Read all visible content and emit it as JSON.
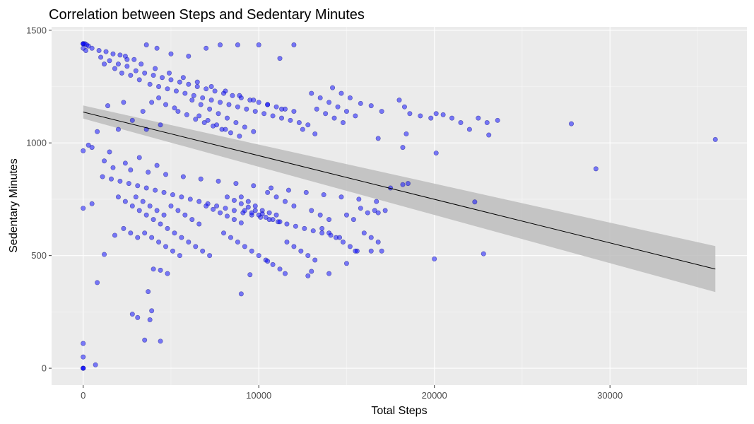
{
  "chart_data": {
    "type": "scatter",
    "title": "Correlation between Steps and Sedentary Minutes",
    "xlabel": "Total Steps",
    "ylabel": "Sedentary Minutes",
    "xlim": [
      -1800,
      37800
    ],
    "ylim": [
      -75,
      1515
    ],
    "x_ticks": [
      0,
      10000,
      20000,
      30000
    ],
    "x_tick_labels": [
      "0",
      "10000",
      "20000",
      "30000"
    ],
    "y_ticks": [
      0,
      500,
      1000,
      1500
    ],
    "y_tick_labels": [
      "0",
      "500",
      "1000",
      "1500"
    ],
    "grid": true,
    "legend": "none",
    "point_color": "#0000ff",
    "point_alpha": 0.5,
    "trend": {
      "method": "linear",
      "x": [
        0,
        36000
      ],
      "y": [
        1137,
        440
      ],
      "ci_lower_start": 1108,
      "ci_upper_start": 1166,
      "ci_lower_end": 338,
      "ci_upper_end": 542,
      "line_color": "#000000",
      "band_color": "#bdbdbd"
    },
    "points": [
      [
        0,
        1440
      ],
      [
        0,
        1440
      ],
      [
        0,
        1440
      ],
      [
        100,
        1440
      ],
      [
        200,
        1435
      ],
      [
        300,
        1430
      ],
      [
        0,
        1420
      ],
      [
        150,
        1410
      ],
      [
        500,
        1420
      ],
      [
        900,
        1410
      ],
      [
        1300,
        1405
      ],
      [
        1700,
        1395
      ],
      [
        2100,
        1390
      ],
      [
        2400,
        1385
      ],
      [
        2900,
        1370
      ],
      [
        3600,
        1435
      ],
      [
        4200,
        1420
      ],
      [
        5000,
        1395
      ],
      [
        6000,
        1385
      ],
      [
        7000,
        1420
      ],
      [
        7800,
        1435
      ],
      [
        8800,
        1435
      ],
      [
        10000,
        1435
      ],
      [
        12000,
        1435
      ],
      [
        11200,
        1375
      ],
      [
        1000,
        1380
      ],
      [
        1500,
        1365
      ],
      [
        2000,
        1350
      ],
      [
        2500,
        1340
      ],
      [
        3000,
        1320
      ],
      [
        3500,
        1310
      ],
      [
        4000,
        1300
      ],
      [
        4500,
        1290
      ],
      [
        5000,
        1280
      ],
      [
        5500,
        1270
      ],
      [
        6000,
        1260
      ],
      [
        6500,
        1250
      ],
      [
        7000,
        1240
      ],
      [
        7500,
        1230
      ],
      [
        8000,
        1220
      ],
      [
        8500,
        1210
      ],
      [
        9000,
        1200
      ],
      [
        9500,
        1190
      ],
      [
        10000,
        1180
      ],
      [
        10500,
        1170
      ],
      [
        11000,
        1160
      ],
      [
        11500,
        1150
      ],
      [
        12000,
        1140
      ],
      [
        1200,
        1350
      ],
      [
        1800,
        1330
      ],
      [
        2200,
        1310
      ],
      [
        2700,
        1300
      ],
      [
        3200,
        1280
      ],
      [
        3800,
        1260
      ],
      [
        4300,
        1250
      ],
      [
        4800,
        1240
      ],
      [
        5300,
        1230
      ],
      [
        5800,
        1220
      ],
      [
        6300,
        1210
      ],
      [
        6800,
        1200
      ],
      [
        7300,
        1190
      ],
      [
        7800,
        1180
      ],
      [
        8300,
        1170
      ],
      [
        8800,
        1160
      ],
      [
        9300,
        1150
      ],
      [
        9800,
        1140
      ],
      [
        10300,
        1130
      ],
      [
        10800,
        1120
      ],
      [
        11300,
        1110
      ],
      [
        11800,
        1100
      ],
      [
        12300,
        1090
      ],
      [
        12800,
        1080
      ],
      [
        2500,
        1370
      ],
      [
        3300,
        1350
      ],
      [
        4100,
        1330
      ],
      [
        4900,
        1310
      ],
      [
        5700,
        1290
      ],
      [
        6500,
        1270
      ],
      [
        7300,
        1250
      ],
      [
        8100,
        1230
      ],
      [
        8900,
        1210
      ],
      [
        9700,
        1190
      ],
      [
        10500,
        1170
      ],
      [
        11300,
        1150
      ],
      [
        6200,
        1190
      ],
      [
        6700,
        1170
      ],
      [
        7200,
        1150
      ],
      [
        7700,
        1130
      ],
      [
        8200,
        1110
      ],
      [
        8700,
        1090
      ],
      [
        9200,
        1070
      ],
      [
        9700,
        1050
      ],
      [
        6600,
        1120
      ],
      [
        7100,
        1100
      ],
      [
        7600,
        1080
      ],
      [
        8100,
        1060
      ],
      [
        5400,
        1140
      ],
      [
        5900,
        1125
      ],
      [
        6400,
        1105
      ],
      [
        6900,
        1090
      ],
      [
        7400,
        1075
      ],
      [
        7900,
        1060
      ],
      [
        8400,
        1045
      ],
      [
        8900,
        1030
      ],
      [
        4700,
        1170
      ],
      [
        5200,
        1155
      ],
      [
        4300,
        1200
      ],
      [
        3900,
        1180
      ],
      [
        13000,
        1220
      ],
      [
        13500,
        1200
      ],
      [
        14000,
        1180
      ],
      [
        14500,
        1160
      ],
      [
        15000,
        1140
      ],
      [
        15500,
        1120
      ],
      [
        13300,
        1150
      ],
      [
        13800,
        1130
      ],
      [
        14300,
        1110
      ],
      [
        14800,
        1090
      ],
      [
        12500,
        1060
      ],
      [
        13200,
        1040
      ],
      [
        14200,
        1245
      ],
      [
        14700,
        1220
      ],
      [
        15200,
        1200
      ],
      [
        15800,
        1175
      ],
      [
        16400,
        1165
      ],
      [
        17000,
        1140
      ],
      [
        18000,
        1190
      ],
      [
        18300,
        1160
      ],
      [
        18600,
        1130
      ],
      [
        19200,
        1120
      ],
      [
        19800,
        1110
      ],
      [
        20500,
        1125
      ],
      [
        20100,
        1130
      ],
      [
        21000,
        1110
      ],
      [
        21500,
        1090
      ],
      [
        22500,
        1110
      ],
      [
        23000,
        1090
      ],
      [
        23600,
        1100
      ],
      [
        22000,
        1060
      ],
      [
        23100,
        1035
      ],
      [
        18200,
        980
      ],
      [
        18400,
        1040
      ],
      [
        20100,
        955
      ],
      [
        16800,
        1020
      ],
      [
        27800,
        1085
      ],
      [
        29200,
        885
      ],
      [
        36000,
        1015
      ],
      [
        22300,
        738
      ],
      [
        22800,
        508
      ],
      [
        20000,
        485
      ],
      [
        18200,
        815
      ],
      [
        1400,
        1165
      ],
      [
        2300,
        1180
      ],
      [
        3400,
        1140
      ],
      [
        2800,
        1100
      ],
      [
        2000,
        1060
      ],
      [
        3600,
        1060
      ],
      [
        4400,
        1080
      ],
      [
        800,
        1050
      ],
      [
        500,
        980
      ],
      [
        300,
        990
      ],
      [
        0,
        965
      ],
      [
        1200,
        920
      ],
      [
        1500,
        960
      ],
      [
        2400,
        910
      ],
      [
        3200,
        935
      ],
      [
        4200,
        900
      ],
      [
        1700,
        890
      ],
      [
        2700,
        880
      ],
      [
        3700,
        870
      ],
      [
        4700,
        860
      ],
      [
        5700,
        850
      ],
      [
        6700,
        840
      ],
      [
        7700,
        830
      ],
      [
        8700,
        820
      ],
      [
        9700,
        810
      ],
      [
        10700,
        800
      ],
      [
        11700,
        790
      ],
      [
        12700,
        780
      ],
      [
        13700,
        770
      ],
      [
        14700,
        760
      ],
      [
        15700,
        750
      ],
      [
        16700,
        740
      ],
      [
        1100,
        850
      ],
      [
        1600,
        840
      ],
      [
        2100,
        830
      ],
      [
        2600,
        820
      ],
      [
        3100,
        810
      ],
      [
        3600,
        800
      ],
      [
        4100,
        790
      ],
      [
        4600,
        780
      ],
      [
        5100,
        770
      ],
      [
        5600,
        760
      ],
      [
        6100,
        750
      ],
      [
        6600,
        740
      ],
      [
        7100,
        730
      ],
      [
        7600,
        720
      ],
      [
        8100,
        710
      ],
      [
        8600,
        700
      ],
      [
        9100,
        690
      ],
      [
        9600,
        680
      ],
      [
        10100,
        670
      ],
      [
        10600,
        660
      ],
      [
        11100,
        650
      ],
      [
        11600,
        640
      ],
      [
        12100,
        630
      ],
      [
        12600,
        620
      ],
      [
        13100,
        610
      ],
      [
        13600,
        600
      ],
      [
        14100,
        590
      ],
      [
        14600,
        580
      ],
      [
        9000,
        760
      ],
      [
        9400,
        740
      ],
      [
        9800,
        720
      ],
      [
        10200,
        700
      ],
      [
        10600,
        690
      ],
      [
        11000,
        680
      ],
      [
        9200,
        700
      ],
      [
        9600,
        690
      ],
      [
        10000,
        680
      ],
      [
        10400,
        670
      ],
      [
        10800,
        660
      ],
      [
        11200,
        650
      ],
      [
        8200,
        760
      ],
      [
        8600,
        745
      ],
      [
        9000,
        730
      ],
      [
        9400,
        715
      ],
      [
        9800,
        700
      ],
      [
        10200,
        685
      ],
      [
        7000,
        720
      ],
      [
        7400,
        705
      ],
      [
        7800,
        690
      ],
      [
        8200,
        675
      ],
      [
        8600,
        660
      ],
      [
        9000,
        645
      ],
      [
        2000,
        760
      ],
      [
        2400,
        740
      ],
      [
        2800,
        720
      ],
      [
        3200,
        700
      ],
      [
        3600,
        680
      ],
      [
        4000,
        660
      ],
      [
        4400,
        640
      ],
      [
        4800,
        620
      ],
      [
        5200,
        600
      ],
      [
        5600,
        580
      ],
      [
        6000,
        560
      ],
      [
        6400,
        540
      ],
      [
        6800,
        520
      ],
      [
        7200,
        500
      ],
      [
        3500,
        600
      ],
      [
        3900,
        580
      ],
      [
        4300,
        560
      ],
      [
        4700,
        540
      ],
      [
        5100,
        520
      ],
      [
        5500,
        500
      ],
      [
        2300,
        620
      ],
      [
        2700,
        600
      ],
      [
        3100,
        580
      ],
      [
        1800,
        590
      ],
      [
        8000,
        600
      ],
      [
        8400,
        580
      ],
      [
        8800,
        560
      ],
      [
        9200,
        540
      ],
      [
        9600,
        520
      ],
      [
        10000,
        500
      ],
      [
        10400,
        480
      ],
      [
        10800,
        460
      ],
      [
        11200,
        440
      ],
      [
        11600,
        560
      ],
      [
        12000,
        540
      ],
      [
        12400,
        520
      ],
      [
        12800,
        500
      ],
      [
        13200,
        480
      ],
      [
        13600,
        620
      ],
      [
        14000,
        600
      ],
      [
        14400,
        580
      ],
      [
        14800,
        560
      ],
      [
        15200,
        540
      ],
      [
        15600,
        520
      ],
      [
        16000,
        600
      ],
      [
        16400,
        580
      ],
      [
        16800,
        560
      ],
      [
        17200,
        700
      ],
      [
        15000,
        680
      ],
      [
        15400,
        660
      ],
      [
        15800,
        710
      ],
      [
        16200,
        690
      ],
      [
        16600,
        700
      ],
      [
        13000,
        700
      ],
      [
        13500,
        680
      ],
      [
        14000,
        660
      ],
      [
        12000,
        720
      ],
      [
        11500,
        740
      ],
      [
        11000,
        760
      ],
      [
        10500,
        780
      ],
      [
        5000,
        720
      ],
      [
        5400,
        700
      ],
      [
        5800,
        680
      ],
      [
        6200,
        660
      ],
      [
        6600,
        640
      ],
      [
        3000,
        760
      ],
      [
        3400,
        740
      ],
      [
        3800,
        720
      ],
      [
        4200,
        700
      ],
      [
        4600,
        680
      ],
      [
        0,
        710
      ],
      [
        500,
        730
      ],
      [
        800,
        380
      ],
      [
        1200,
        505
      ],
      [
        2800,
        240
      ],
      [
        3100,
        225
      ],
      [
        3700,
        340
      ],
      [
        3900,
        255
      ],
      [
        3800,
        215
      ],
      [
        4400,
        120
      ],
      [
        3500,
        125
      ],
      [
        4000,
        440
      ],
      [
        4400,
        435
      ],
      [
        4800,
        420
      ],
      [
        0,
        110
      ],
      [
        0,
        50
      ],
      [
        0,
        0
      ],
      [
        0,
        0
      ],
      [
        0,
        0
      ],
      [
        700,
        15
      ],
      [
        9000,
        330
      ],
      [
        9500,
        415
      ],
      [
        10500,
        475
      ],
      [
        11500,
        420
      ],
      [
        12800,
        410
      ],
      [
        13000,
        430
      ],
      [
        14000,
        420
      ],
      [
        15000,
        465
      ],
      [
        15500,
        520
      ],
      [
        16400,
        520
      ],
      [
        17000,
        520
      ],
      [
        18500,
        820
      ],
      [
        17500,
        800
      ],
      [
        16800,
        690
      ]
    ]
  }
}
